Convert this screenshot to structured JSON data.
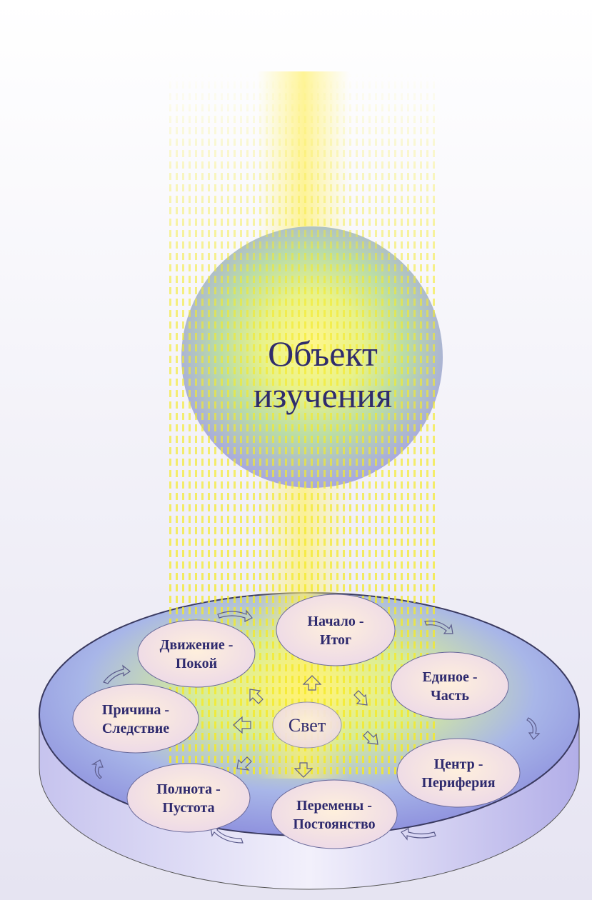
{
  "sphere": {
    "lines": [
      "Объект",
      "изучения"
    ]
  },
  "center": "Свет",
  "nodes": [
    {
      "lines": [
        "Начало -",
        "Итог"
      ]
    },
    {
      "lines": [
        "Движение -",
        "Покой"
      ]
    },
    {
      "lines": [
        "Единое -",
        "Часть"
      ]
    },
    {
      "lines": [
        "Причина -",
        "Следствие"
      ]
    },
    {
      "lines": [
        "Центр -",
        "Периферия"
      ]
    },
    {
      "lines": [
        "Полнота -",
        "Пустота"
      ]
    },
    {
      "lines": [
        "Перемены -",
        "Постоянство"
      ]
    }
  ]
}
